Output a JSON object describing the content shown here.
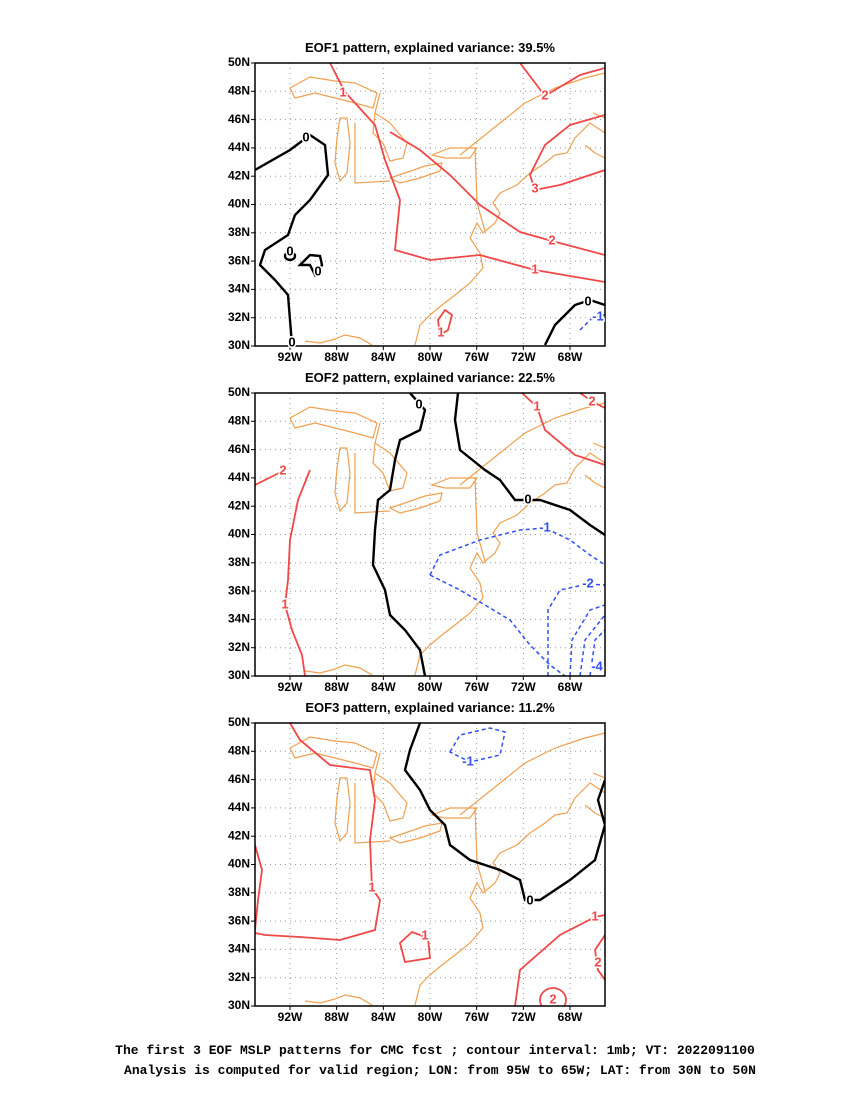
{
  "axes": {
    "xlim": [
      -95,
      -65
    ],
    "ylim": [
      30,
      50
    ],
    "xticks": [
      {
        "value": -92,
        "label": "92W"
      },
      {
        "value": -88,
        "label": "88W"
      },
      {
        "value": -84,
        "label": "84W"
      },
      {
        "value": -80,
        "label": "80W"
      },
      {
        "value": -76,
        "label": "76W"
      },
      {
        "value": -72,
        "label": "72W"
      },
      {
        "value": -68,
        "label": "68W"
      }
    ],
    "yticks": [
      {
        "value": 30,
        "label": "30N"
      },
      {
        "value": 32,
        "label": "32N"
      },
      {
        "value": 34,
        "label": "34N"
      },
      {
        "value": 36,
        "label": "36N"
      },
      {
        "value": 38,
        "label": "38N"
      },
      {
        "value": 40,
        "label": "40N"
      },
      {
        "value": 42,
        "label": "42N"
      },
      {
        "value": 44,
        "label": "44N"
      },
      {
        "value": 46,
        "label": "46N"
      },
      {
        "value": 48,
        "label": "48N"
      },
      {
        "value": 50,
        "label": "50N"
      }
    ]
  },
  "panels": [
    {
      "title": "EOF1 pattern, explained variance: 39.5%",
      "contour_labels": [
        1,
        2,
        3,
        2,
        1,
        1,
        0,
        0,
        0,
        0,
        0,
        -1
      ]
    },
    {
      "title": "EOF2 pattern, explained variance: 22.5%",
      "contour_labels": [
        0,
        1,
        2,
        2,
        0,
        -1,
        -2,
        1,
        -4
      ]
    },
    {
      "title": "EOF3 pattern, explained variance: 11.2%",
      "contour_labels": [
        -1,
        0,
        1,
        1,
        1,
        2,
        2
      ]
    }
  ],
  "footer": [
    "The first 3 EOF MSLP patterns for CMC fcst ; contour interval: 1mb; VT: 2022091100",
    "Analysis is computed for valid region; LON: from 95W to 65W; LAT: from 30N to 50N"
  ]
}
